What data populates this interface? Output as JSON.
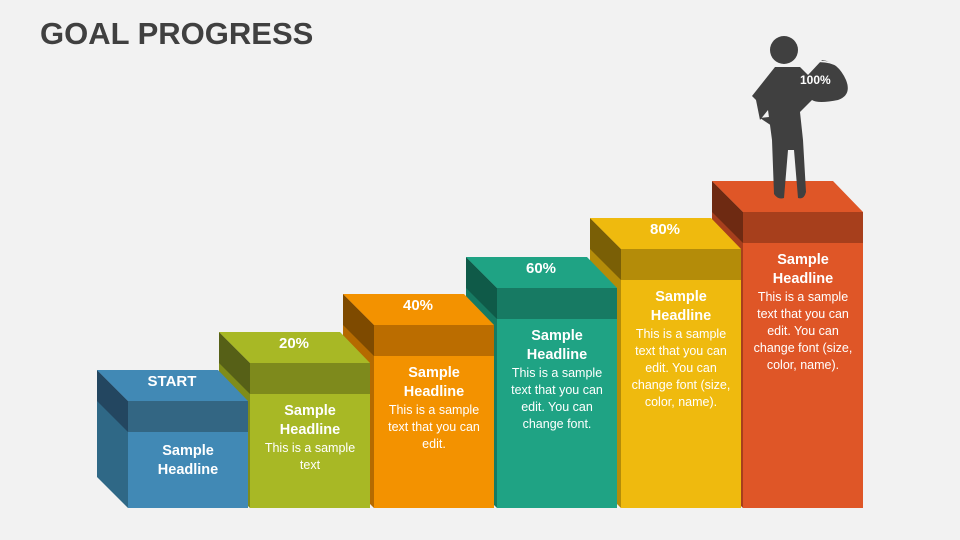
{
  "title": "GOAL PROGRESS",
  "figure_label": "100%",
  "steps": [
    {
      "label": "START",
      "headline": "Sample Headline",
      "text": "",
      "colors": {
        "top": "#4189b5",
        "band": "#336683",
        "side": "#2f6886",
        "sideDark": "#234660"
      }
    },
    {
      "label": "20%",
      "headline": "Sample Headline",
      "text": "This is a sample text",
      "colors": {
        "top": "#a8b825",
        "band": "#7e8a1c",
        "side": "#7f8c1a",
        "sideDark": "#566017"
      }
    },
    {
      "label": "40%",
      "headline": "Sample Headline",
      "text": "This is a sample text that you can edit.",
      "colors": {
        "top": "#f39200",
        "band": "#bb6d00",
        "side": "#b56a00",
        "sideDark": "#7e4a00"
      }
    },
    {
      "label": "60%",
      "headline": "Sample Headline",
      "text": "This is a sample text that you can edit. You can change font.",
      "colors": {
        "top": "#1fa384",
        "band": "#177a63",
        "side": "#167a62",
        "sideDark": "#0f5a48"
      }
    },
    {
      "label": "80%",
      "headline": "Sample Headline",
      "text": "This is a sample text that you can edit. You can change font (size, color, name).",
      "colors": {
        "top": "#efba0e",
        "band": "#b48c09",
        "side": "#b48c09",
        "sideDark": "#7a5f06"
      }
    },
    {
      "label": "",
      "headline": "Sample Headline",
      "text": "This is a sample text that you can edit. You can change font (size, color, name).",
      "colors": {
        "top": "#df5627",
        "band": "#a73f1c",
        "side": "#a73f1c",
        "sideDark": "#6e2a12"
      }
    }
  ]
}
